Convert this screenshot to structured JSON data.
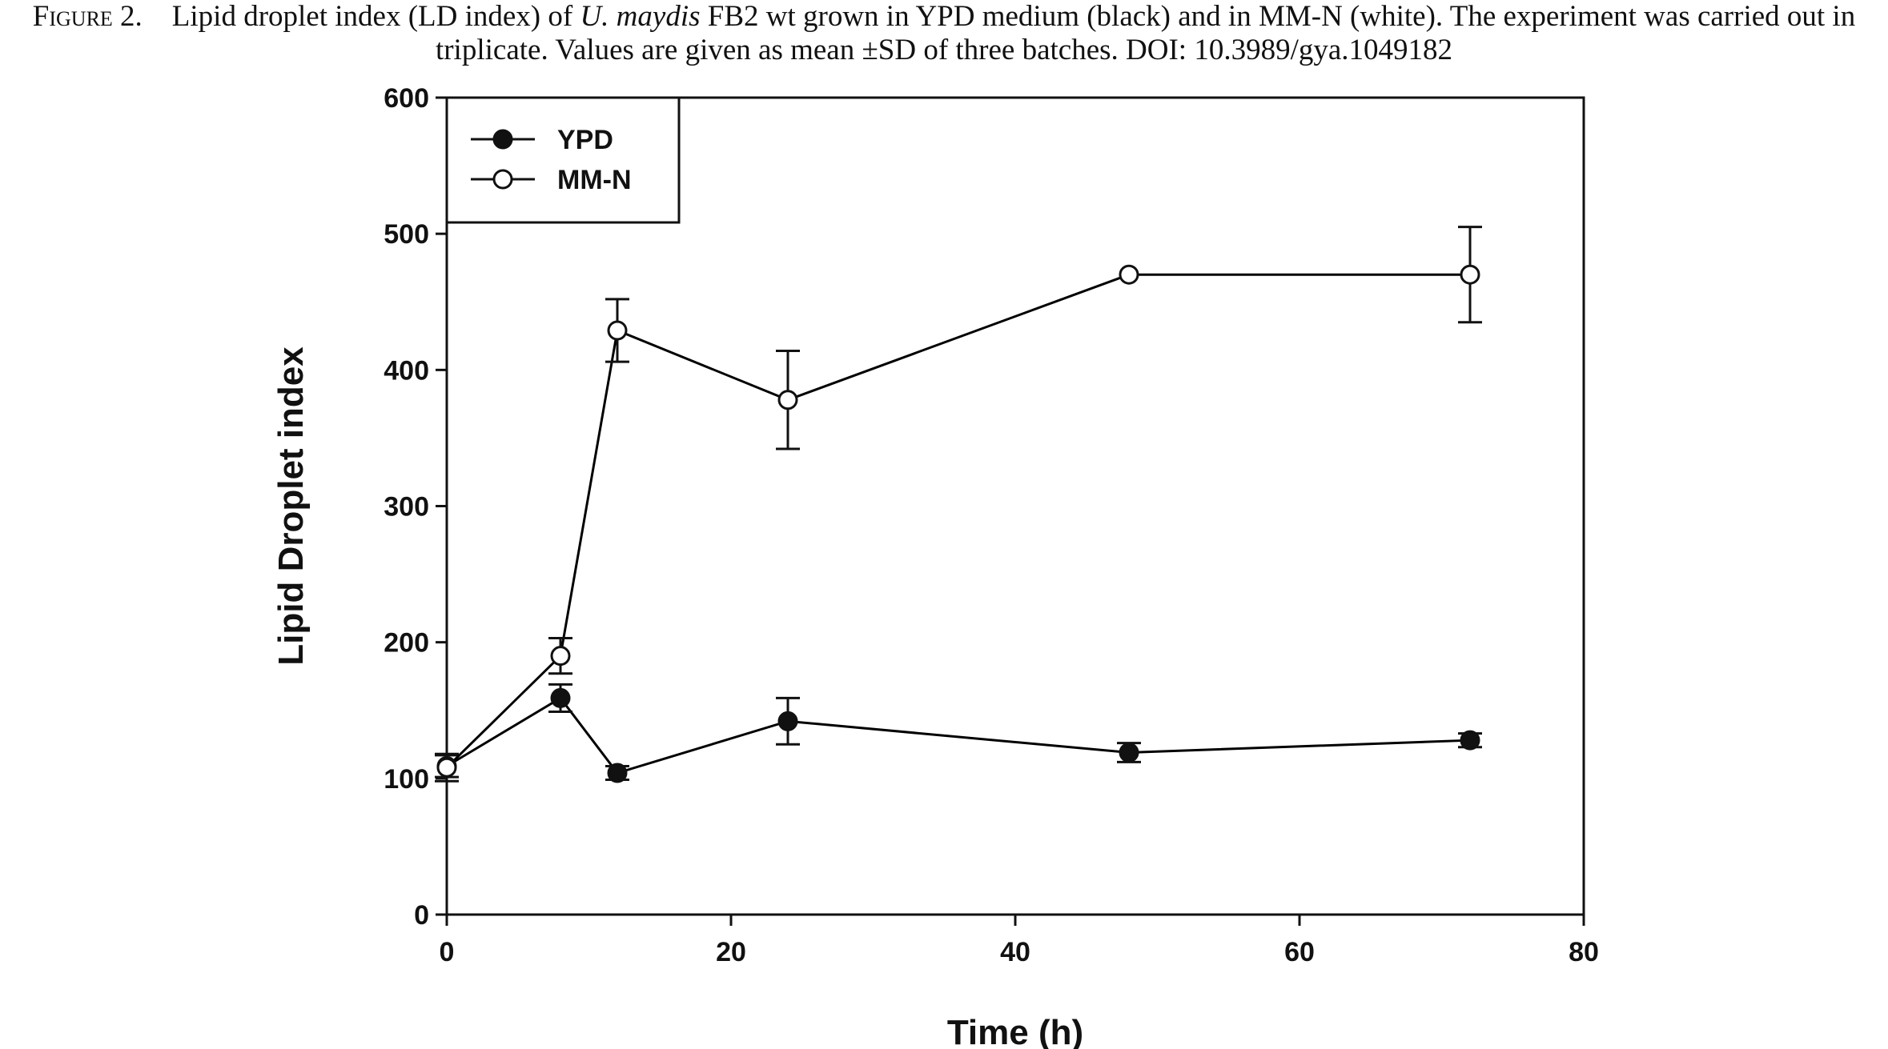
{
  "caption": {
    "label": "Figure 2.",
    "text_before_italic": "Lipid droplet index (LD index) of ",
    "italic": "U. maydis",
    "text_after_italic": " FB2 wt grown in YPD medium (black) and in MM-N (white). The experiment was carried out in triplicate. Values are given as mean ±SD of three batches. DOI: 10.3989/gya.1049182"
  },
  "chart_data": {
    "type": "line",
    "xlabel": "Time (h)",
    "ylabel": "Lipid Droplet index",
    "xlim": [
      0,
      80
    ],
    "ylim": [
      0,
      600
    ],
    "xticks": [
      0,
      20,
      40,
      60,
      80
    ],
    "yticks": [
      0,
      100,
      200,
      300,
      400,
      500,
      600
    ],
    "grid": false,
    "legend_position": "top-left",
    "series": [
      {
        "name": "YPD",
        "marker": "filled-circle",
        "color": "#000000",
        "points": [
          {
            "x": 0,
            "y": 109,
            "err": 8
          },
          {
            "x": 8,
            "y": 159,
            "err": 10
          },
          {
            "x": 12,
            "y": 104,
            "err": 5
          },
          {
            "x": 24,
            "y": 142,
            "err": 17
          },
          {
            "x": 48,
            "y": 119,
            "err": 7
          },
          {
            "x": 72,
            "y": 128,
            "err": 5
          }
        ]
      },
      {
        "name": "MM-N",
        "marker": "open-circle",
        "color": "#000000",
        "points": [
          {
            "x": 0,
            "y": 108,
            "err": 10
          },
          {
            "x": 8,
            "y": 190,
            "err": 13
          },
          {
            "x": 12,
            "y": 429,
            "err": 23
          },
          {
            "x": 24,
            "y": 378,
            "err": 36
          },
          {
            "x": 48,
            "y": 470,
            "err": 0
          },
          {
            "x": 72,
            "y": 470,
            "err": 35
          }
        ]
      }
    ]
  }
}
